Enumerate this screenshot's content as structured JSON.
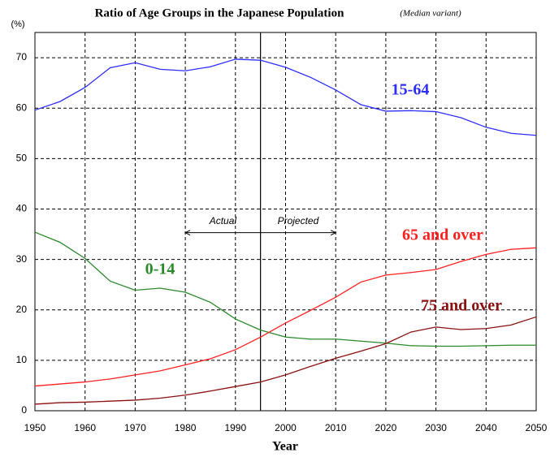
{
  "chart_data": {
    "type": "line",
    "title": "Ratio of Age Groups in the Japanese Population",
    "subtitle": "(Median variant)",
    "y_label": "(%)",
    "x_label": "Year",
    "x": [
      1950,
      1955,
      1960,
      1965,
      1970,
      1975,
      1980,
      1985,
      1990,
      1995,
      2000,
      2005,
      2010,
      2015,
      2020,
      2025,
      2030,
      2035,
      2040,
      2045,
      2050
    ],
    "series": [
      {
        "name": "15-64",
        "color": "#2e2eff",
        "values": [
          59.6,
          61.3,
          64.1,
          68.0,
          69.0,
          67.7,
          67.4,
          68.2,
          69.7,
          69.5,
          68.1,
          66.1,
          63.6,
          60.7,
          59.4,
          59.5,
          59.3,
          58.1,
          56.2,
          55.0,
          54.6
        ]
      },
      {
        "name": "0-14",
        "color": "#2a8a2a",
        "values": [
          35.4,
          33.4,
          30.2,
          25.7,
          23.9,
          24.3,
          23.5,
          21.5,
          18.2,
          16.0,
          14.6,
          14.2,
          14.2,
          13.8,
          13.4,
          12.9,
          12.8,
          12.8,
          12.9,
          13.0,
          13.0
        ]
      },
      {
        "name": "65 and over",
        "color": "#ff2020",
        "values": [
          4.9,
          5.3,
          5.7,
          6.3,
          7.1,
          7.9,
          9.1,
          10.3,
          12.1,
          14.6,
          17.4,
          19.9,
          22.5,
          25.5,
          26.9,
          27.4,
          28.0,
          29.6,
          31.0,
          32.0,
          32.3
        ]
      },
      {
        "name": "75 and over",
        "color": "#8b1010",
        "values": [
          1.3,
          1.6,
          1.7,
          1.9,
          2.1,
          2.5,
          3.1,
          3.9,
          4.8,
          5.7,
          7.1,
          8.8,
          10.4,
          11.8,
          13.3,
          15.6,
          16.6,
          16.1,
          16.3,
          17.0,
          18.6
        ]
      }
    ],
    "xlim": [
      1950,
      2050
    ],
    "xticks": [
      1950,
      1960,
      1970,
      1980,
      1990,
      2000,
      2010,
      2020,
      2030,
      2040,
      2050
    ],
    "ylim": [
      0,
      75
    ],
    "yticks": [
      0,
      10,
      20,
      30,
      40,
      50,
      60,
      70
    ],
    "grid": true,
    "divider_x": 1995,
    "period_range": [
      1980,
      2010
    ],
    "annotations": [
      "Actual",
      "Projected"
    ]
  }
}
